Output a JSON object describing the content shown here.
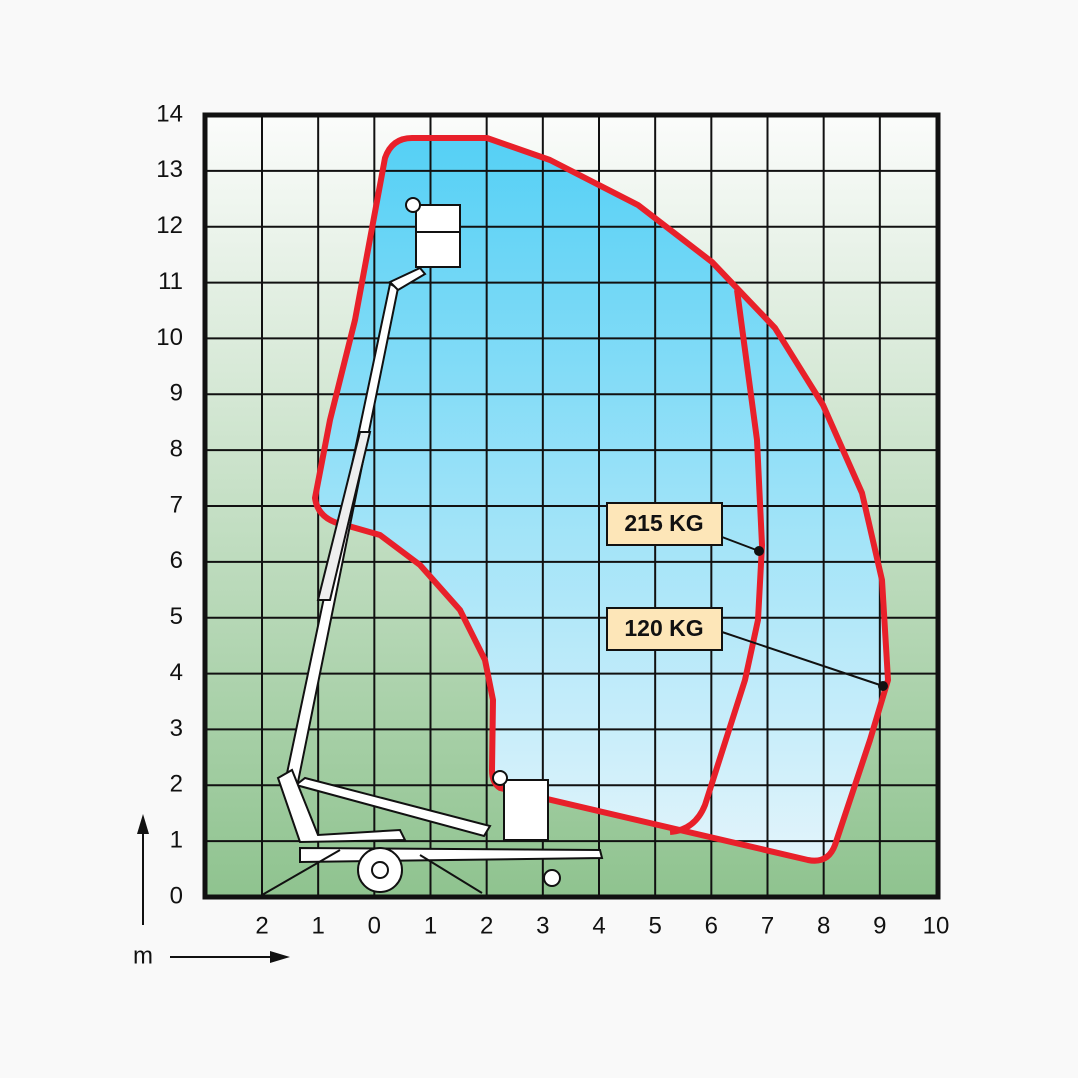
{
  "axes": {
    "y_labels": [
      "0",
      "1",
      "2",
      "3",
      "4",
      "5",
      "6",
      "7",
      "8",
      "9",
      "10",
      "11",
      "12",
      "13",
      "14"
    ],
    "x_labels": [
      "2",
      "1",
      "0",
      "1",
      "2",
      "3",
      "4",
      "5",
      "6",
      "7",
      "8",
      "9",
      "10"
    ],
    "unit": "m"
  },
  "annotations": [
    {
      "label": "215 KG"
    },
    {
      "label": "120 KG"
    }
  ]
}
